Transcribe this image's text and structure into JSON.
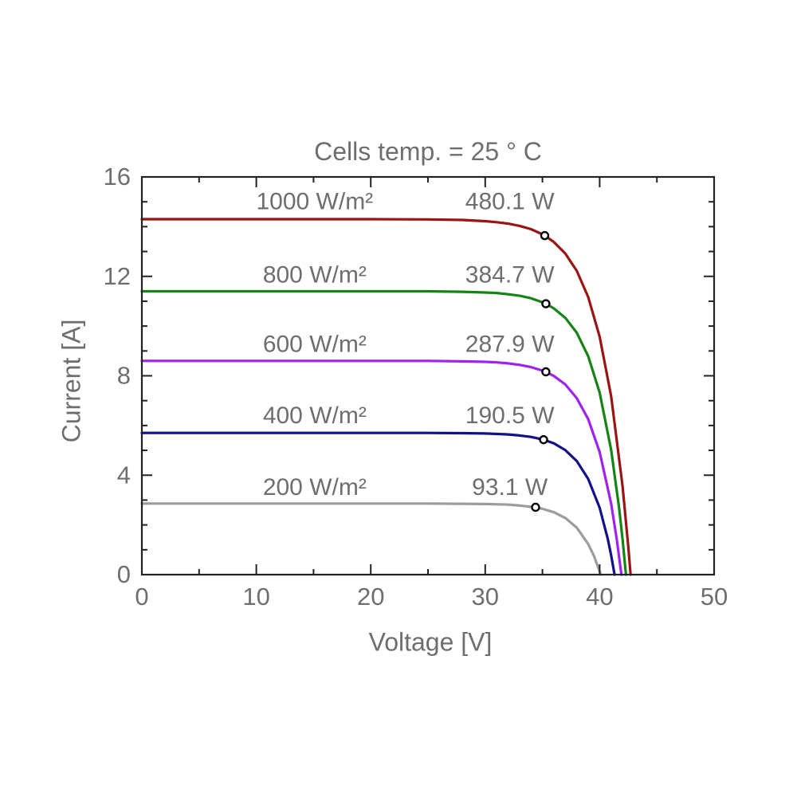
{
  "figure": {
    "title": "Cells temp. = 25 ° C",
    "x_axis_label": "Voltage [V]",
    "y_axis_label": "Current [A]"
  },
  "colors": {
    "text": "#6e6e6e",
    "axis": "#222222",
    "background": "#ffffff",
    "marker_fill": "#ffffff",
    "marker_stroke": "#000000"
  },
  "chart_data": {
    "type": "line",
    "title": "Cells temp. = 25 ° C",
    "xlabel": "Voltage [V]",
    "ylabel": "Current [A]",
    "xlim": [
      0,
      50
    ],
    "ylim": [
      0,
      16
    ],
    "xticks": [
      0,
      10,
      20,
      30,
      40,
      50
    ],
    "yticks": [
      0,
      4,
      8,
      12,
      16
    ],
    "x_minor_step": 5,
    "y_minor_step": 1,
    "grid": false,
    "legend_position": "inline-annotations",
    "annotation_irradiance_center_v": 15.1,
    "annotation_power_center_v": 32.15,
    "series": [
      {
        "name": "1000 W/m²",
        "irradiance_label": "1000 W/m²",
        "power_label": "480.1 W",
        "color": "#9a1414",
        "isc_a": 14.3,
        "voc_v": 42.7,
        "mpp": {
          "v": 35.2,
          "i": 13.64,
          "p_w": 480.1
        },
        "label_row_current": 15.02,
        "points": [
          [
            0,
            14.3
          ],
          [
            5,
            14.3
          ],
          [
            10,
            14.3
          ],
          [
            15,
            14.3
          ],
          [
            20,
            14.3
          ],
          [
            25,
            14.29
          ],
          [
            28,
            14.27
          ],
          [
            30,
            14.22
          ],
          [
            31,
            14.18
          ],
          [
            32,
            14.12
          ],
          [
            33,
            14.03
          ],
          [
            34,
            13.9
          ],
          [
            35,
            13.69
          ],
          [
            35.2,
            13.64
          ],
          [
            36,
            13.38
          ],
          [
            37,
            12.92
          ],
          [
            38,
            12.22
          ],
          [
            39,
            11.17
          ],
          [
            40,
            9.57
          ],
          [
            41,
            7.18
          ],
          [
            42,
            3.57
          ],
          [
            42.5,
            1.13
          ],
          [
            42.7,
            0
          ]
        ]
      },
      {
        "name": "800 W/m²",
        "irradiance_label": "800 W/m²",
        "power_label": "384.7 W",
        "color": "#168316",
        "isc_a": 11.4,
        "voc_v": 42.3,
        "mpp": {
          "v": 35.3,
          "i": 10.9,
          "p_w": 384.7
        },
        "label_row_current": 12.08,
        "points": [
          [
            0,
            11.4
          ],
          [
            5,
            11.4
          ],
          [
            10,
            11.4
          ],
          [
            15,
            11.4
          ],
          [
            20,
            11.4
          ],
          [
            25,
            11.4
          ],
          [
            28,
            11.38
          ],
          [
            30,
            11.35
          ],
          [
            31,
            11.33
          ],
          [
            32,
            11.28
          ],
          [
            33,
            11.22
          ],
          [
            34,
            11.12
          ],
          [
            35,
            10.96
          ],
          [
            35.3,
            10.9
          ],
          [
            36,
            10.71
          ],
          [
            37,
            10.33
          ],
          [
            38,
            9.73
          ],
          [
            39,
            8.79
          ],
          [
            40,
            7.32
          ],
          [
            41,
            5.02
          ],
          [
            41.7,
            2.68
          ],
          [
            42,
            1.43
          ],
          [
            42.3,
            0
          ]
        ]
      },
      {
        "name": "600 W/m²",
        "irradiance_label": "600 W/m²",
        "power_label": "287.9 W",
        "color": "#a021f0",
        "isc_a": 8.6,
        "voc_v": 41.9,
        "mpp": {
          "v": 35.3,
          "i": 8.16,
          "p_w": 287.9
        },
        "label_row_current": 9.28,
        "points": [
          [
            0,
            8.6
          ],
          [
            5,
            8.6
          ],
          [
            10,
            8.6
          ],
          [
            15,
            8.6
          ],
          [
            20,
            8.6
          ],
          [
            25,
            8.6
          ],
          [
            28,
            8.58
          ],
          [
            30,
            8.56
          ],
          [
            31,
            8.54
          ],
          [
            32,
            8.5
          ],
          [
            33,
            8.44
          ],
          [
            34,
            8.35
          ],
          [
            35,
            8.21
          ],
          [
            35.3,
            8.16
          ],
          [
            36,
            7.99
          ],
          [
            37,
            7.65
          ],
          [
            38,
            7.1
          ],
          [
            39,
            6.26
          ],
          [
            40,
            4.93
          ],
          [
            41,
            2.86
          ],
          [
            41.5,
            1.41
          ],
          [
            41.9,
            0
          ]
        ]
      },
      {
        "name": "400 W/m²",
        "irradiance_label": "400 W/m²",
        "power_label": "190.5 W",
        "color": "#121288",
        "isc_a": 5.7,
        "voc_v": 41.3,
        "mpp": {
          "v": 35.1,
          "i": 5.43,
          "p_w": 190.5
        },
        "label_row_current": 6.42,
        "points": [
          [
            0,
            5.7
          ],
          [
            5,
            5.7
          ],
          [
            10,
            5.7
          ],
          [
            15,
            5.7
          ],
          [
            20,
            5.7
          ],
          [
            25,
            5.7
          ],
          [
            28,
            5.69
          ],
          [
            30,
            5.68
          ],
          [
            32,
            5.64
          ],
          [
            33,
            5.6
          ],
          [
            34,
            5.54
          ],
          [
            35,
            5.44
          ],
          [
            35.1,
            5.43
          ],
          [
            36,
            5.28
          ],
          [
            37,
            5.01
          ],
          [
            38,
            4.57
          ],
          [
            39,
            3.85
          ],
          [
            40,
            2.69
          ],
          [
            40.7,
            1.45
          ],
          [
            41,
            0.78
          ],
          [
            41.3,
            0
          ]
        ]
      },
      {
        "name": "200 W/m²",
        "irradiance_label": "200 W/m²",
        "power_label": "93.1 W",
        "color": "#9c9c9c",
        "isc_a": 2.86,
        "voc_v": 40.1,
        "mpp": {
          "v": 34.4,
          "i": 2.71,
          "p_w": 93.1
        },
        "label_row_current": 3.53,
        "points": [
          [
            0,
            2.86
          ],
          [
            5,
            2.86
          ],
          [
            10,
            2.86
          ],
          [
            15,
            2.86
          ],
          [
            20,
            2.86
          ],
          [
            25,
            2.86
          ],
          [
            28,
            2.85
          ],
          [
            30,
            2.84
          ],
          [
            32,
            2.82
          ],
          [
            33,
            2.78
          ],
          [
            34,
            2.73
          ],
          [
            34.4,
            2.71
          ],
          [
            35,
            2.65
          ],
          [
            36,
            2.51
          ],
          [
            37,
            2.28
          ],
          [
            38,
            1.89
          ],
          [
            39,
            1.23
          ],
          [
            39.5,
            0.76
          ],
          [
            40.1,
            0
          ]
        ]
      }
    ]
  }
}
